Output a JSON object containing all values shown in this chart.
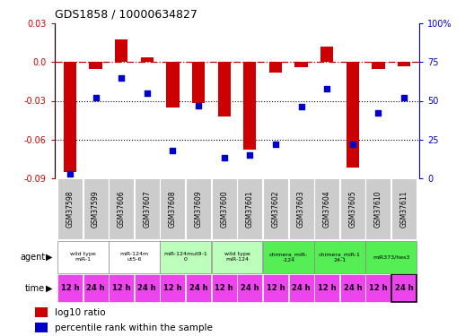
{
  "title": "GDS1858 / 10000634827",
  "samples": [
    "GSM37598",
    "GSM37599",
    "GSM37606",
    "GSM37607",
    "GSM37608",
    "GSM37609",
    "GSM37600",
    "GSM37601",
    "GSM37602",
    "GSM37603",
    "GSM37604",
    "GSM37605",
    "GSM37610",
    "GSM37611"
  ],
  "log10_ratio": [
    -0.085,
    -0.005,
    0.018,
    0.004,
    -0.035,
    -0.032,
    -0.042,
    -0.068,
    -0.008,
    -0.004,
    0.012,
    -0.082,
    -0.005,
    -0.003
  ],
  "percentile_rank": [
    3,
    52,
    65,
    55,
    18,
    47,
    13,
    15,
    22,
    46,
    58,
    22,
    42,
    52
  ],
  "ylim_left": [
    -0.09,
    0.03
  ],
  "ylim_right": [
    0,
    100
  ],
  "yticks_left": [
    -0.09,
    -0.06,
    -0.03,
    0.0,
    0.03
  ],
  "yticks_right": [
    0,
    25,
    50,
    75,
    100
  ],
  "ytick_labels_right": [
    "0",
    "25",
    "50",
    "75",
    "100%"
  ],
  "hline_dash": 0.0,
  "hlines_dot": [
    -0.03,
    -0.06
  ],
  "bar_color": "#cc0000",
  "dot_color": "#0000cc",
  "agent_groups": [
    {
      "label": "wild type\nmiR-1",
      "start": 0,
      "end": 2,
      "color": "#ffffff"
    },
    {
      "label": "miR-124m\nut5-6",
      "start": 2,
      "end": 4,
      "color": "#ffffff"
    },
    {
      "label": "miR-124mut9-1\n0",
      "start": 4,
      "end": 6,
      "color": "#bbffbb"
    },
    {
      "label": "wild type\nmiR-124",
      "start": 6,
      "end": 8,
      "color": "#bbffbb"
    },
    {
      "label": "chimera_miR-\n-124",
      "start": 8,
      "end": 10,
      "color": "#55ee55"
    },
    {
      "label": "chimera_miR-1\n24-1",
      "start": 10,
      "end": 12,
      "color": "#55ee55"
    },
    {
      "label": "miR373/hes3",
      "start": 12,
      "end": 14,
      "color": "#55ee55"
    }
  ],
  "time_labels": [
    "12 h",
    "24 h",
    "12 h",
    "24 h",
    "12 h",
    "24 h",
    "12 h",
    "24 h",
    "12 h",
    "24 h",
    "12 h",
    "24 h",
    "12 h",
    "24 h"
  ],
  "time_color": "#ee44ee",
  "sample_bg": "#cccccc",
  "legend_items": [
    {
      "label": "log10 ratio",
      "color": "#cc0000"
    },
    {
      "label": "percentile rank within the sample",
      "color": "#0000cc"
    }
  ]
}
